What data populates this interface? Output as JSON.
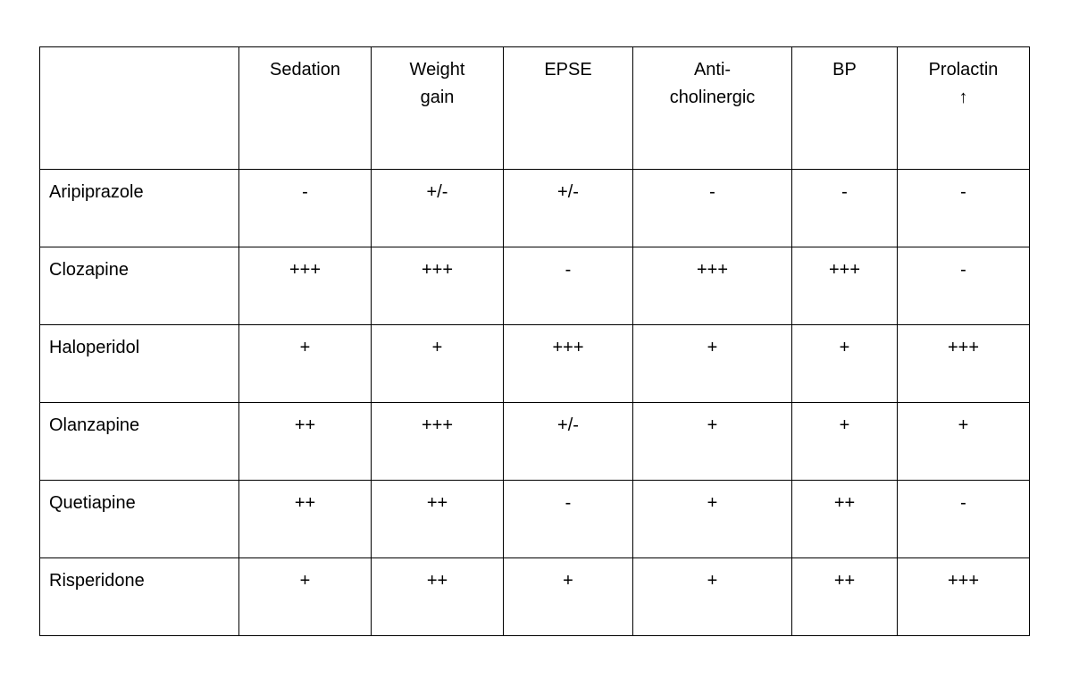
{
  "page": {
    "background_color": "#ffffff",
    "text_color": "#000000",
    "border_color": "#000000"
  },
  "table": {
    "corner_label": "",
    "headers": [
      "Sedation",
      "Weight\ngain",
      "EPSE",
      "Anti-\ncholinergic",
      "BP",
      "Prolactin\n↑"
    ],
    "rows": [
      {
        "drug": "Aripiprazole",
        "values": [
          "-",
          "+/-",
          "+/-",
          "-",
          "-",
          "-"
        ]
      },
      {
        "drug": "Clozapine",
        "values": [
          "+++",
          "+++",
          "-",
          "+++",
          "+++",
          "-"
        ]
      },
      {
        "drug": "Haloperidol",
        "values": [
          "+",
          "+",
          "+++",
          "+",
          "+",
          "+++"
        ]
      },
      {
        "drug": "Olanzapine",
        "values": [
          "++",
          "+++",
          "+/-",
          "+",
          "+",
          "+"
        ]
      },
      {
        "drug": "Quetiapine",
        "values": [
          "++",
          "++",
          "-",
          "+",
          "++",
          "-"
        ]
      },
      {
        "drug": "Risperidone",
        "values": [
          "+",
          "++",
          "+",
          "+",
          "++",
          "+++"
        ]
      }
    ]
  }
}
